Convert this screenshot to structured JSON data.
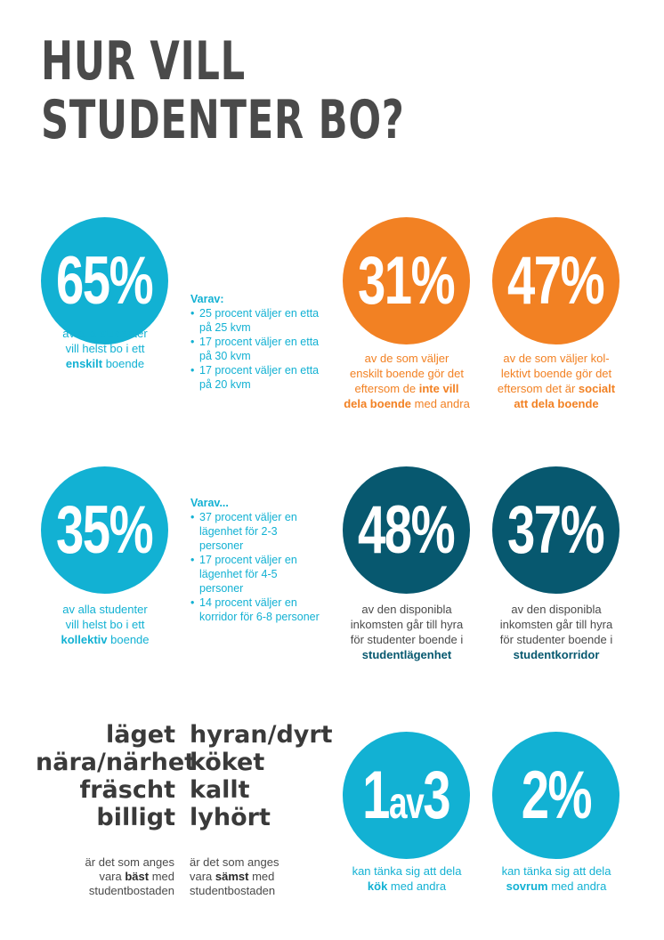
{
  "title": {
    "line1": "HUR VILL",
    "line2": "STUDENTER BO?"
  },
  "enskilt": {
    "stat": "65%",
    "cap1": "av alla studenter",
    "cap2": "vill helst bo i ett",
    "cap3_bold": "enskilt",
    "cap3_rest": " boende",
    "varav_head": "Varav:",
    "varav_items": [
      "25 procent väljer en etta på 25 kvm",
      "17 procent väljer en etta på 30 kvm",
      "17 procent väljer en etta på 20 kvm"
    ]
  },
  "stat31": {
    "stat": "31%",
    "cap1": "av de som väljer",
    "cap2": "enskilt boende gör det",
    "cap3": "eftersom de ",
    "cap3_bold": "inte vill",
    "cap4_bold": "dela boende",
    "cap4_rest": " med andra"
  },
  "stat47": {
    "stat": "47%",
    "cap1": "av de som väljer kol-",
    "cap2": "lektivt boende gör det",
    "cap3": "eftersom det är ",
    "cap3_bold": "socialt",
    "cap4_bold": "att dela boende"
  },
  "kollektiv": {
    "stat": "35%",
    "cap1": "av alla studenter",
    "cap2": "vill helst bo i ett",
    "cap3_bold": "kollektiv",
    "cap3_rest": " boende",
    "varav_head": "Varav...",
    "varav_items": [
      "37 procent väljer en lägenhet för 2-3 personer",
      "17 procent väljer en lägenhet för 4-5 personer",
      "14 procent väljer en korridor för 6-8 personer"
    ]
  },
  "stat48": {
    "stat": "48%",
    "cap1": "av den disponibla",
    "cap2": "inkomsten går till hyra",
    "cap3": "för studenter boende i",
    "cap4_bold": "studentlägenhet"
  },
  "stat37": {
    "stat": "37%",
    "cap1": "av den disponibla",
    "cap2": "inkomsten går till hyra",
    "cap3": "för studenter boende i",
    "cap4_bold": "studentkorridor"
  },
  "best": {
    "words": [
      "läget",
      "nära/närhet",
      "fräscht",
      "billigt"
    ],
    "cap1": "är det som anges",
    "cap2_pre": "vara ",
    "cap2_bold": "bäst",
    "cap2_post": " med",
    "cap3": "studentbostaden"
  },
  "worst": {
    "words": [
      "hyran/dyrt",
      "köket",
      "kallt",
      "lyhört"
    ],
    "cap1": "är det som anges",
    "cap2_pre": "vara ",
    "cap2_bold": "sämst",
    "cap2_post": " med",
    "cap3": "studentbostaden"
  },
  "kitchen": {
    "stat_big1": "1",
    "stat_small": "av",
    "stat_big2": "3",
    "cap1": "kan tänka sig att dela",
    "cap2_bold": "kök",
    "cap2_rest": " med andra"
  },
  "bedroom": {
    "stat": "2%",
    "cap1": "kan tänka sig att dela",
    "cap2_bold": "sovrum",
    "cap2_rest": " med andra"
  },
  "colors": {
    "cyan": "#12b1d3",
    "orange": "#f28123",
    "teal": "#07586f",
    "grey": "#4a4a4a"
  }
}
